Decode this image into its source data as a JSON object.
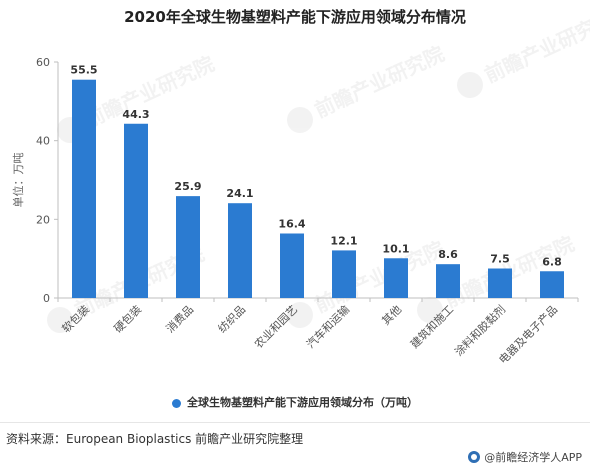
{
  "chart_data": {
    "type": "bar",
    "title": "2020年全球生物基塑料产能下游应用领域分布情况",
    "ylabel": "单位：万吨",
    "ylim": [
      0,
      60
    ],
    "yticks": [
      0,
      20,
      40,
      60
    ],
    "categories": [
      "软包装",
      "硬包装",
      "消费品",
      "纺织品",
      "农业和园艺",
      "汽车和运输",
      "其他",
      "建筑和施工",
      "涂料和胶黏剂",
      "电器及电子产品"
    ],
    "series": [
      {
        "name": "全球生物基塑料产能下游应用领域分布（万吨）",
        "values": [
          55.5,
          44.3,
          25.9,
          24.1,
          16.4,
          12.1,
          10.1,
          8.6,
          7.5,
          6.8
        ],
        "labels": [
          "55.5",
          "44.3",
          "25.9",
          "24.1",
          "16.4",
          "12.1",
          "10.1",
          "8.6",
          "7.5",
          "6.8"
        ]
      }
    ],
    "legend_position": "bottom",
    "grid": false,
    "colors": {
      "bar": "#2b7bd1",
      "axis": "#bfbfbf",
      "text": "#555555"
    }
  },
  "source": "资料来源：European Bioplastics 前瞻产业研究院整理",
  "brand": "@前瞻经济学人APP",
  "watermark": "前瞻产业研究院"
}
